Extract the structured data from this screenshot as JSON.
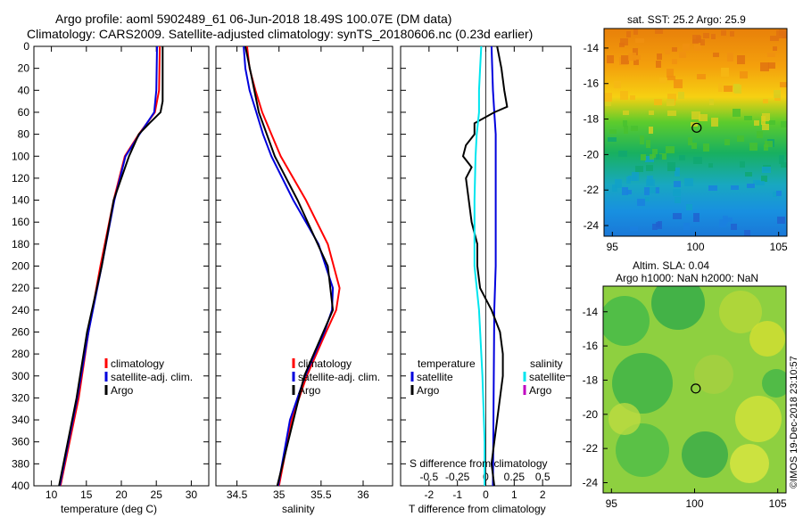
{
  "header": {
    "line1": "Argo profile: aoml 5902489_61 06-Jun-2018 18.49S 100.07E (DM data)",
    "line2": "Climatology: CARS2009. Satellite-adjusted climatology: synTS_20180606.nc (0.23d earlier)"
  },
  "depth_ticks": [
    "0",
    "20",
    "40",
    "60",
    "80",
    "100",
    "120",
    "140",
    "160",
    "180",
    "200",
    "220",
    "240",
    "260",
    "280",
    "300",
    "320",
    "340",
    "360",
    "380",
    "400"
  ],
  "colors": {
    "climatology": "#ff0000",
    "satellite": "#0000dd",
    "argo": "#000000",
    "sat_salinity": "#00e5ee",
    "argo_salinity": "#c000c0"
  },
  "chart_data": [
    {
      "type": "line",
      "title": "",
      "xlabel": "temperature (deg C)",
      "ylabel": "",
      "xlim": [
        7.5,
        32.5
      ],
      "ylim": [
        400,
        0
      ],
      "xticks": [
        "10",
        "15",
        "20",
        "25",
        "30"
      ],
      "legend": [
        "climatology",
        "satellite-adj. clim.",
        "Argo"
      ],
      "series": [
        {
          "name": "climatology",
          "depth": [
            0,
            40,
            60,
            80,
            100,
            140,
            200,
            260,
            320,
            400
          ],
          "values": [
            25.5,
            25.4,
            24.8,
            22.5,
            20.5,
            18.9,
            17.0,
            15.3,
            13.9,
            11.3
          ]
        },
        {
          "name": "satellite-adj. clim.",
          "depth": [
            0,
            40,
            60,
            80,
            100,
            140,
            200,
            260,
            320,
            400
          ],
          "values": [
            25.1,
            25.0,
            24.7,
            22.6,
            20.6,
            19.0,
            17.2,
            15.3,
            13.7,
            11.2
          ]
        },
        {
          "name": "Argo",
          "depth": [
            0,
            50,
            60,
            70,
            80,
            100,
            140,
            200,
            260,
            320,
            400
          ],
          "values": [
            25.9,
            25.9,
            25.6,
            24.0,
            22.5,
            21.1,
            18.9,
            17.2,
            15.1,
            13.6,
            11.1
          ]
        }
      ]
    },
    {
      "type": "line",
      "xlabel": "salinity",
      "xlim": [
        34.25,
        36.35
      ],
      "ylim": [
        400,
        0
      ],
      "xticks": [
        "34.5",
        "35",
        "35.5",
        "36"
      ],
      "legend": [
        "climatology",
        "satellite-adj. clim.",
        "Argo"
      ],
      "series": [
        {
          "name": "climatology",
          "depth": [
            0,
            20,
            40,
            60,
            80,
            100,
            140,
            180,
            220,
            240,
            260,
            300,
            340,
            400
          ],
          "values": [
            34.62,
            34.65,
            34.72,
            34.8,
            34.91,
            35.02,
            35.32,
            35.58,
            35.72,
            35.68,
            35.56,
            35.33,
            35.15,
            35.0
          ],
          "values_note": ""
        },
        {
          "name": "satellite-adj. clim.",
          "depth": [
            0,
            20,
            40,
            60,
            80,
            100,
            140,
            180,
            220,
            240,
            260,
            300,
            340,
            400
          ],
          "values": [
            34.58,
            34.6,
            34.65,
            34.73,
            34.81,
            34.91,
            35.17,
            35.47,
            35.64,
            35.63,
            35.54,
            35.31,
            35.13,
            34.99
          ]
        },
        {
          "name": "Argo",
          "depth": [
            0,
            60,
            100,
            140,
            200,
            240,
            300,
            400
          ],
          "values": [
            34.6,
            34.76,
            34.95,
            35.22,
            35.58,
            35.64,
            35.3,
            34.98
          ]
        }
      ]
    },
    {
      "type": "line",
      "xlabel": "T difference from climatology",
      "x2label": "S difference from climatology",
      "xlim": [
        -3,
        3
      ],
      "ylim": [
        400,
        0
      ],
      "xticks": [
        "-2",
        "-1",
        "0",
        "1",
        "2"
      ],
      "x2ticks": [
        "-0.5",
        "-0.25",
        "0",
        "0.25",
        "0.5"
      ],
      "legend_temperature": [
        "temperature",
        "satellite",
        "Argo"
      ],
      "legend_salinity": [
        "salinity",
        "satellite",
        "Argo"
      ],
      "series": [
        {
          "name": "T satellite",
          "depth": [
            0,
            40,
            60,
            80,
            100,
            200,
            240,
            400
          ],
          "values": [
            0.2,
            0.25,
            0.3,
            0.35,
            0.35,
            0.35,
            0.3,
            0.25
          ]
        },
        {
          "name": "T Argo",
          "depth": [
            0,
            20,
            40,
            55,
            60,
            70,
            80,
            90,
            100,
            110,
            120,
            140,
            160,
            180,
            200,
            220,
            240,
            260,
            280,
            300,
            320,
            340,
            360,
            380,
            400
          ],
          "values": [
            0.4,
            0.55,
            0.65,
            0.75,
            0.3,
            -0.4,
            -0.4,
            -0.7,
            -0.8,
            -0.5,
            -0.7,
            -0.6,
            -0.5,
            -0.3,
            -0.3,
            -0.2,
            0.2,
            0.5,
            0.6,
            0.6,
            0.5,
            0.4,
            0.3,
            0.2,
            0.3
          ]
        },
        {
          "name": "S satellite",
          "depth": [
            0,
            20,
            40,
            60,
            80,
            100,
            140,
            200,
            240,
            300,
            360,
            400
          ],
          "values": [
            -0.04,
            -0.05,
            -0.06,
            -0.06,
            -0.08,
            -0.09,
            -0.1,
            -0.1,
            -0.06,
            -0.03,
            -0.01,
            -0.01
          ]
        }
      ]
    },
    {
      "type": "heatmap",
      "title": "sat. SST: 25.2 Argo: 25.9",
      "xlim": [
        94.5,
        105.5
      ],
      "ylim": [
        -24.6,
        -12.9
      ],
      "xticks": [
        "95",
        "100",
        "105"
      ],
      "yticks": [
        "-14",
        "-16",
        "-18",
        "-20",
        "-22",
        "-24"
      ],
      "marker": {
        "lon": 100.07,
        "lat": -18.49
      }
    },
    {
      "type": "heatmap",
      "title": "Altim. SLA: 0.04",
      "subtitle": "Argo h1000: NaN h2000: NaN",
      "xlim": [
        94.5,
        105.5
      ],
      "ylim": [
        -24.6,
        -12.5
      ],
      "xticks": [
        "95",
        "100",
        "105"
      ],
      "yticks": [
        "-14",
        "-16",
        "-18",
        "-20",
        "-22",
        "-24"
      ],
      "marker": {
        "lon": 100.07,
        "lat": -18.49
      }
    }
  ],
  "credit": "©IMOS 19-Dec-2018 23:10:57"
}
